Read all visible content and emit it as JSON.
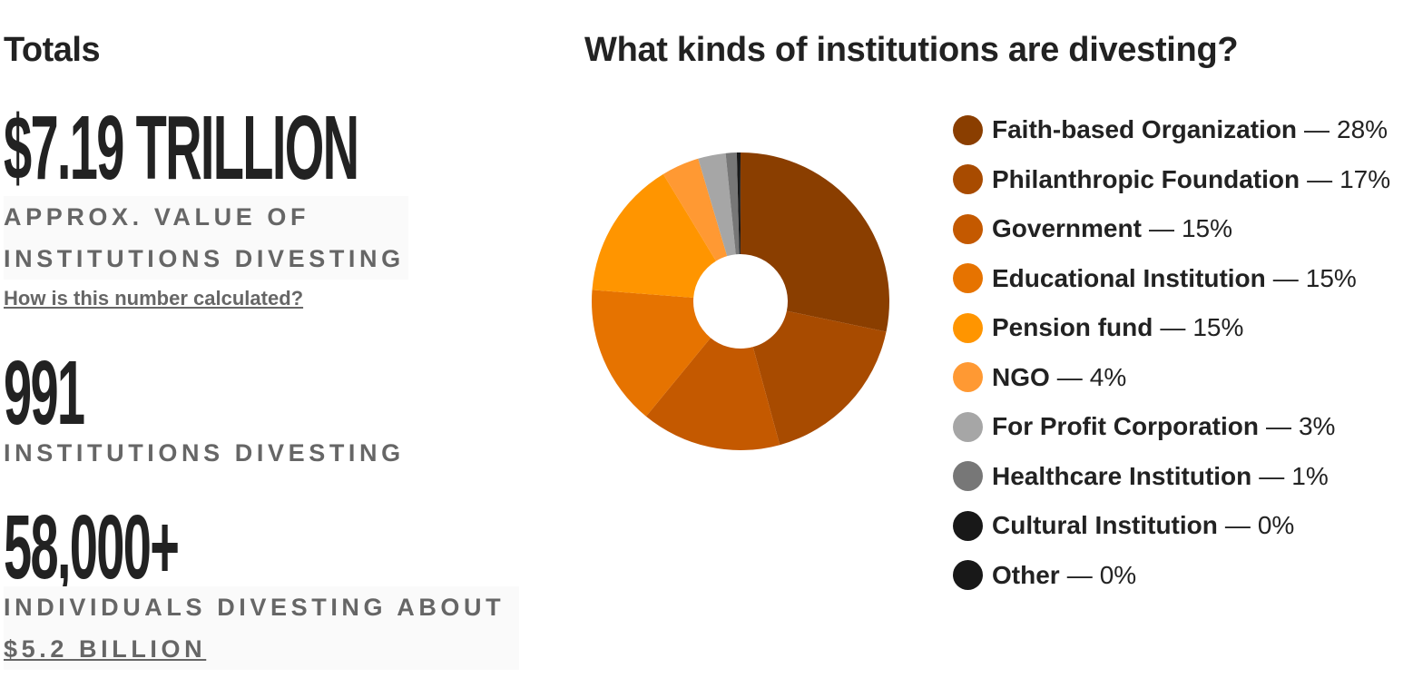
{
  "totals": {
    "heading": "Totals",
    "value_total": "$7.19 TRILLION",
    "value_caption_line1": "APPROX. VALUE OF",
    "value_caption_line2": "INSTITUTIONS DIVESTING",
    "calc_link": "How is this number calculated?",
    "institutions_count": "991",
    "institutions_caption": "INSTITUTIONS DIVESTING",
    "individuals_count": "58,000+",
    "individuals_caption_line1": "INDIVIDUALS DIVESTING ABOUT",
    "individuals_caption_link": "$5.2 BILLION"
  },
  "chart_data": {
    "type": "pie",
    "title": "What kinds of institutions are divesting?",
    "donut": true,
    "legend_position": "right",
    "separator": "—",
    "categories": [
      "Faith-based Organization",
      "Philanthropic Foundation",
      "Government",
      "Educational Institution",
      "Pension fund",
      "NGO",
      "For Profit Corporation",
      "Healthcare Institution",
      "Cultural Institution",
      "Other"
    ],
    "labels": [
      "28%",
      "17%",
      "15%",
      "15%",
      "15%",
      "4%",
      "3%",
      "1%",
      "0%",
      "0%"
    ],
    "values": [
      28.3,
      17.5,
      15.2,
      15.3,
      15.1,
      4.1,
      3.0,
      1.2,
      0.3,
      0.1
    ],
    "colors": [
      "#8a3e00",
      "#a84b00",
      "#c45900",
      "#e67300",
      "#ff9500",
      "#ff9933",
      "#a6a6a6",
      "#777777",
      "#181818",
      "#181818"
    ]
  }
}
